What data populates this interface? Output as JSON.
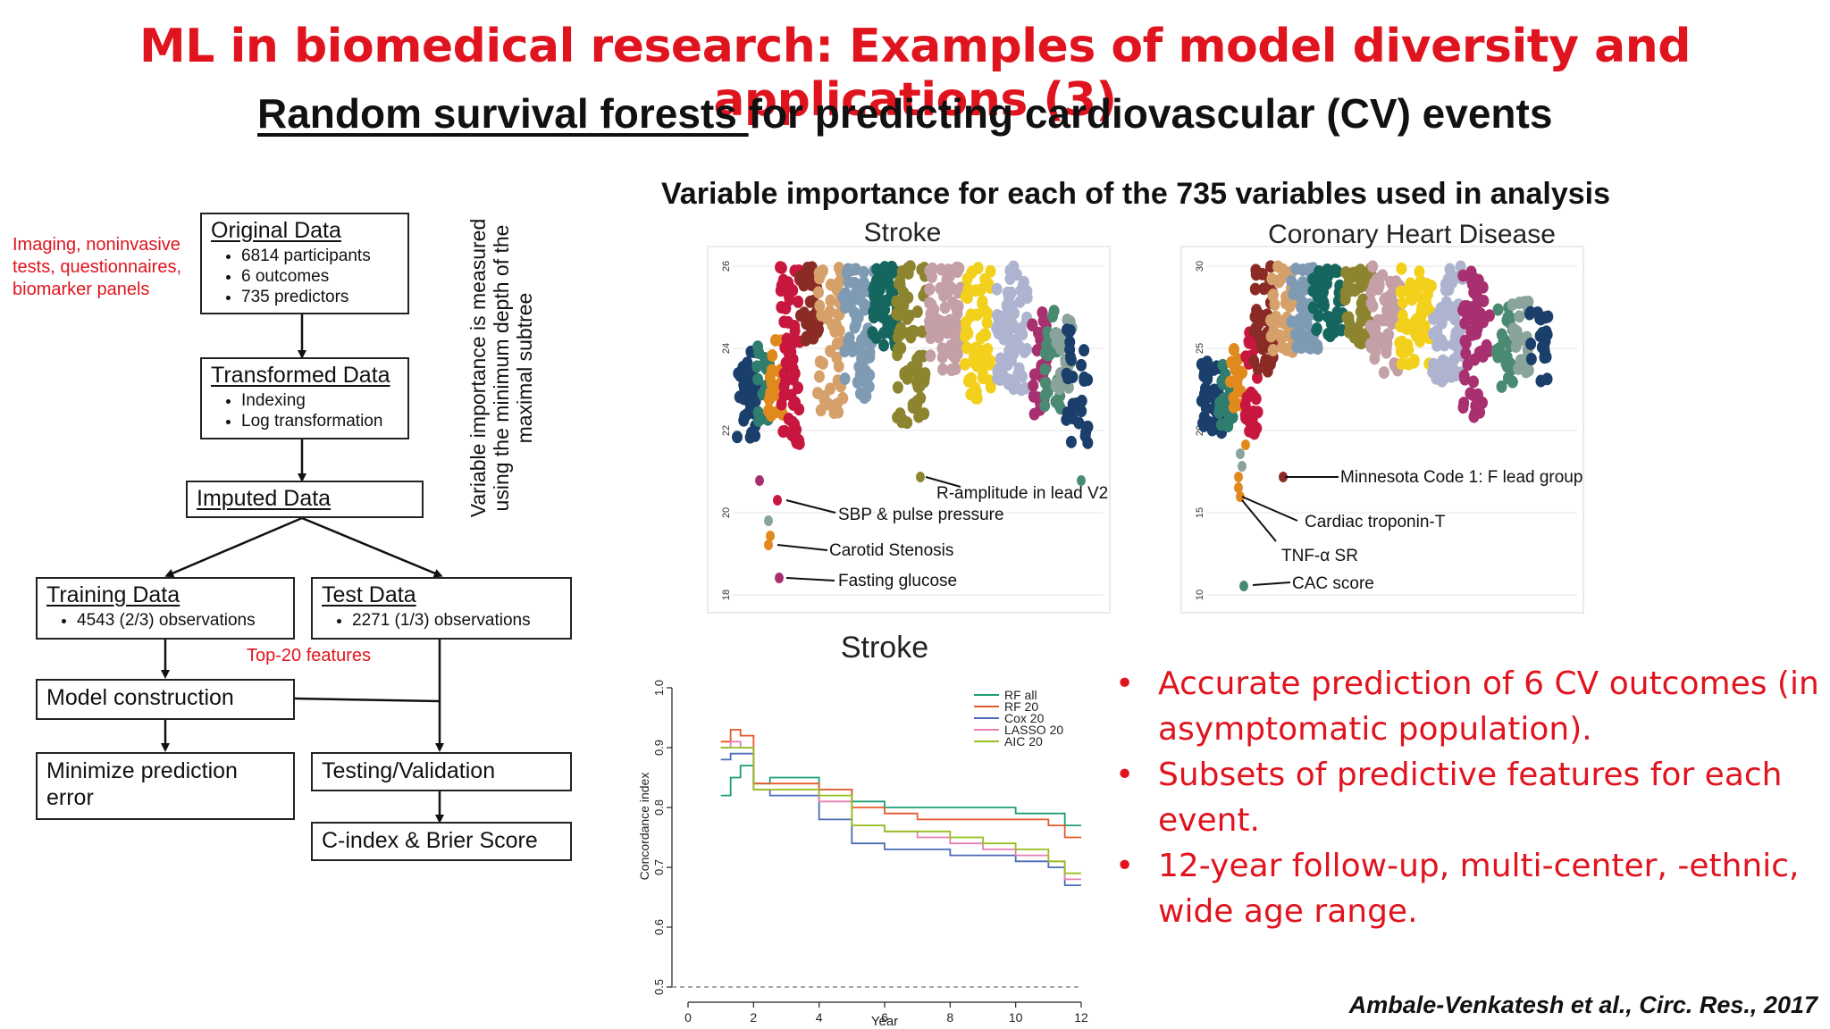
{
  "slide": {
    "title": "ML in biomedical research: Examples of model diversity and applications (3)",
    "subtitle_underlined": "Random survival forests ",
    "subtitle_rest": "for predicting cardiovascular (CV) events",
    "citation": "Ambale-Venkatesh et al., Circ. Res., 2017"
  },
  "flowchart": {
    "input_note": "Imaging, noninvasive tests, questionnaires, biomarker panels",
    "original": {
      "title": "Original Data",
      "items": [
        "6814 participants",
        "6 outcomes",
        "735 predictors"
      ]
    },
    "transformed": {
      "title": "Transformed Data",
      "items": [
        "Indexing",
        "Log transformation"
      ]
    },
    "imputed": {
      "title": "Imputed Data"
    },
    "training": {
      "title": "Training Data",
      "items": [
        "4543 (2/3) observations"
      ]
    },
    "test": {
      "title": "Test Data",
      "items": [
        "2271 (1/3) observations"
      ]
    },
    "top_features": "Top-20 features",
    "model": "Model construction",
    "minimize": "Minimize prediction error",
    "testing": "Testing/Validation",
    "score": "C-index & Brier Score"
  },
  "importance": {
    "heading": "Variable importance for each of the 735 variables used in analysis",
    "ylabel": "Variable importance is measured using the minimum depth of the maximal subtree",
    "stroke": {
      "title": "Stroke",
      "yticks": [
        "18",
        "20",
        "22",
        "24",
        "26"
      ],
      "annotations": [
        "R-amplitude in lead V2",
        "SBP & pulse pressure",
        "Carotid Stenosis",
        "Fasting glucose"
      ]
    },
    "chd": {
      "title": "Coronary Heart Disease",
      "yticks": [
        "10",
        "15",
        "20",
        "25",
        "30"
      ],
      "annotations": [
        "Minnesota Code 1: F lead group",
        "Cardiac troponin-T",
        "TNF-α SR",
        "CAC score"
      ]
    }
  },
  "chart_data": {
    "type": "line",
    "title": "Stroke",
    "xlabel": "Year",
    "ylabel": "Concordance index",
    "xlim": [
      0,
      12
    ],
    "ylim": [
      0.5,
      1.0
    ],
    "xticks": [
      "0",
      "2",
      "4",
      "6",
      "8",
      "10",
      "12"
    ],
    "yticks": [
      "0.5",
      "0.6",
      "0.7",
      "0.8",
      "0.9",
      "1.0"
    ],
    "reference_line": 0.5,
    "legend_position": "top-right",
    "series": [
      {
        "name": "RF all",
        "color": "#1a9e77",
        "x": [
          1,
          1.3,
          1.6,
          2,
          2.5,
          3,
          4,
          5,
          6,
          7,
          8,
          9,
          10,
          11,
          11.5,
          12
        ],
        "y": [
          0.82,
          0.85,
          0.87,
          0.84,
          0.85,
          0.85,
          0.83,
          0.81,
          0.8,
          0.8,
          0.8,
          0.8,
          0.79,
          0.79,
          0.77,
          0.77
        ]
      },
      {
        "name": "RF 20",
        "color": "#e8592c",
        "x": [
          1,
          1.3,
          1.6,
          2,
          2.5,
          3,
          4,
          5,
          6,
          7,
          8,
          9,
          10,
          11,
          11.5,
          12
        ],
        "y": [
          0.91,
          0.93,
          0.92,
          0.84,
          0.84,
          0.84,
          0.83,
          0.8,
          0.79,
          0.78,
          0.78,
          0.78,
          0.78,
          0.77,
          0.75,
          0.75
        ]
      },
      {
        "name": "Cox 20",
        "color": "#4b6bb8",
        "x": [
          1,
          1.3,
          1.6,
          2,
          2.5,
          3,
          4,
          5,
          6,
          7,
          8,
          9,
          10,
          11,
          11.5,
          12
        ],
        "y": [
          0.88,
          0.89,
          0.89,
          0.83,
          0.82,
          0.82,
          0.78,
          0.74,
          0.73,
          0.73,
          0.72,
          0.72,
          0.71,
          0.7,
          0.67,
          0.67
        ]
      },
      {
        "name": "LASSO 20",
        "color": "#e67fb5",
        "x": [
          1,
          1.3,
          1.6,
          2,
          2.5,
          3,
          4,
          5,
          6,
          7,
          8,
          9,
          10,
          11,
          11.5,
          12
        ],
        "y": [
          0.9,
          0.91,
          0.9,
          0.83,
          0.83,
          0.83,
          0.81,
          0.77,
          0.76,
          0.75,
          0.74,
          0.73,
          0.72,
          0.71,
          0.68,
          0.68
        ]
      },
      {
        "name": "AIC 20",
        "color": "#95c11f",
        "x": [
          1,
          1.3,
          1.6,
          2,
          2.5,
          3,
          4,
          5,
          6,
          7,
          8,
          9,
          10,
          11,
          11.5,
          12
        ],
        "y": [
          0.9,
          0.9,
          0.9,
          0.83,
          0.83,
          0.83,
          0.82,
          0.77,
          0.76,
          0.76,
          0.75,
          0.74,
          0.73,
          0.71,
          0.69,
          0.69
        ]
      }
    ]
  },
  "bullets": [
    "Accurate prediction of 6 CV outcomes (in asymptomatic population).",
    "Subsets of predictive features for each event.",
    "12-year follow-up, multi-center, -ethnic, wide age range."
  ],
  "colors": {
    "title_red": "#e0141e",
    "scatter_palette": [
      "#1b3f6b",
      "#2e7d6e",
      "#e08a1e",
      "#c8173f",
      "#8a2c25",
      "#d6a06a",
      "#7f9bb3",
      "#14665e",
      "#8d8430",
      "#c49fa5",
      "#f2d01c",
      "#aeb4cf",
      "#a83070",
      "#4b8a72",
      "#8aa39b"
    ]
  }
}
